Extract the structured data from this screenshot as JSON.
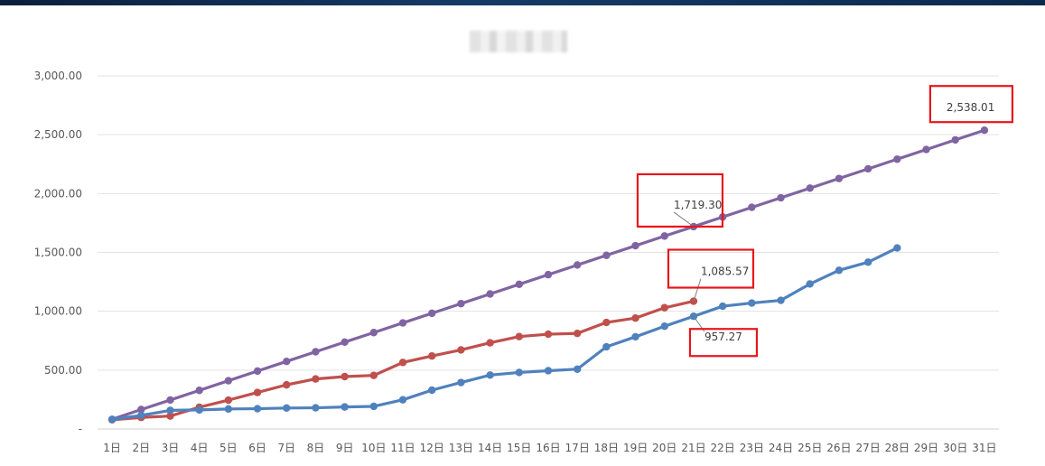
{
  "chart_data": {
    "type": "line",
    "title": "",
    "xlabel": "",
    "ylabel": "",
    "ylim": [
      0,
      3000
    ],
    "yticks": [
      "-",
      "500.00",
      "1,000.00",
      "1,500.00",
      "2,000.00",
      "2,500.00",
      "3,000.00"
    ],
    "yticks_values": [
      0,
      500,
      1000,
      1500,
      2000,
      2500,
      3000
    ],
    "grid": "horizontal",
    "categories": [
      "1日",
      "2日",
      "3日",
      "4日",
      "5日",
      "6日",
      "7日",
      "8日",
      "9日",
      "10日",
      "11日",
      "12日",
      "13日",
      "14日",
      "15日",
      "16日",
      "17日",
      "18日",
      "19日",
      "20日",
      "21日",
      "22日",
      "23日",
      "24日",
      "25日",
      "26日",
      "27日",
      "28日",
      "29日",
      "30日",
      "31日"
    ],
    "series": [
      {
        "color": "#8064a2",
        "values": [
          82,
          165,
          246,
          328,
          410,
          492,
          574,
          656,
          738,
          819,
          901,
          983,
          1065,
          1147,
          1229,
          1311,
          1393,
          1475,
          1557,
          1639,
          1719.3,
          1801,
          1883,
          1964,
          2046,
          2128,
          2210,
          2292,
          2374,
          2456,
          2538.01
        ]
      },
      {
        "color": "#c0504d",
        "values": [
          78,
          98,
          110,
          185,
          245,
          310,
          375,
          425,
          445,
          455,
          565,
          620,
          672,
          732,
          785,
          805,
          812,
          905,
          942,
          1030,
          1085.57,
          null,
          null,
          null,
          null,
          null,
          null,
          null,
          null,
          null,
          null
        ]
      },
      {
        "color": "#4f81bd",
        "values": [
          80,
          115,
          158,
          162,
          170,
          172,
          178,
          180,
          187,
          192,
          248,
          330,
          395,
          458,
          480,
          495,
          508,
          698,
          783,
          873,
          957.27,
          1043,
          1070,
          1093,
          1232,
          1348,
          1417,
          1538,
          null,
          null,
          null
        ]
      }
    ],
    "annotations": [
      {
        "series": 0,
        "index": 20,
        "text": "1,719.30"
      },
      {
        "series": 1,
        "index": 20,
        "text": "1,085.57"
      },
      {
        "series": 2,
        "index": 20,
        "text": "957.27"
      },
      {
        "series": 0,
        "index": 30,
        "text": "2,538.01"
      }
    ],
    "highlight_color": "#e8161b"
  }
}
